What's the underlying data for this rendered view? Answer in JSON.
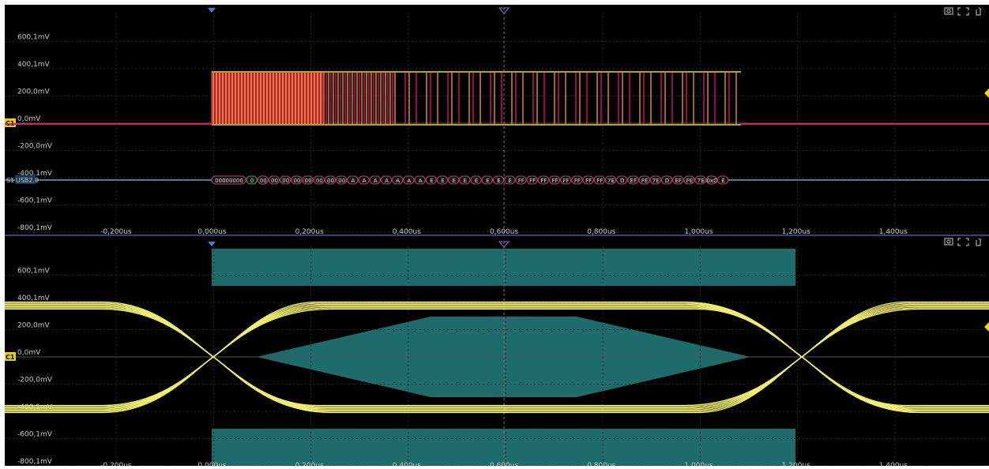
{
  "panels": [
    {
      "channel": "C1",
      "y_labels": [
        "600,1mV",
        "400,1mV",
        "200,0mV",
        "0,0mV",
        "-200,0mV",
        "-400,1mV",
        "-600,1mV",
        "-800,1mV"
      ],
      "x_labels": [
        "-0,200us",
        "0,000us",
        "0,200us",
        "0,400us",
        "0,600us",
        "0,800us",
        "1,000us",
        "1,200us",
        "1,400us"
      ],
      "bus": {
        "name": "S1",
        "protocol": "USB2.0",
        "decode": [
          "00000000",
          "0",
          "00",
          "00",
          "00",
          "00",
          "00",
          "00",
          "00",
          "00",
          "A",
          "A",
          "A",
          "A",
          "A",
          "A",
          "A",
          "E",
          "E",
          "E",
          "E",
          "E",
          "E",
          "E",
          "E",
          "FF",
          "FF",
          "FF",
          "FF",
          "FF",
          "FF",
          "FF",
          "FF",
          "7E",
          "D",
          "EF",
          "FE",
          "7E",
          "D",
          "EF",
          "FE",
          "7E",
          "0xC",
          "E"
        ]
      }
    },
    {
      "channel": "C1",
      "y_labels": [
        "600,1mV",
        "400,1mV",
        "200,0mV",
        "0,0mV",
        "-200,0mV",
        "-400,1mV",
        "-600,1mV",
        "-800,1mV"
      ],
      "x_labels": [
        "-0,200us",
        "0,000us",
        "0,200us",
        "0,400us",
        "0,600us",
        "0,800us",
        "1,000us",
        "1,200us",
        "1,400us"
      ]
    }
  ]
}
